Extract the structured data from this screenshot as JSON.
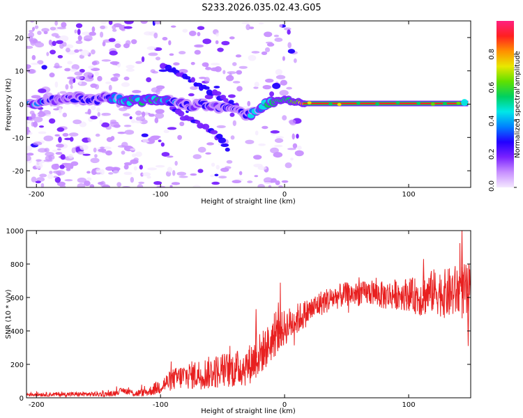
{
  "page_title": "S233.2026.035.02.43.G05",
  "chart_data": [
    {
      "type": "heatmap",
      "name": "spectrogram",
      "xlabel": "Height of straight line (km)",
      "ylabel": "Frequency (Hz)",
      "xlim": [
        -208,
        150
      ],
      "ylim": [
        -25,
        25
      ],
      "xticks": [
        -200,
        -100,
        0,
        100
      ],
      "xtick_labels": [
        "-200",
        "-100",
        "0",
        "100"
      ],
      "yticks": [
        -20,
        -10,
        0,
        10,
        20
      ],
      "ytick_labels": [
        "-20",
        "-10",
        "0",
        "10",
        "20"
      ],
      "colorbar": {
        "label": "Normalized spectral amplitude",
        "range": [
          0,
          1
        ],
        "ticks": [
          0.0,
          0.2,
          0.4,
          0.6,
          0.8
        ],
        "tick_labels": [
          "0.0",
          "0.2",
          "0.4",
          "0.6",
          "0.8"
        ],
        "colors": [
          "#f4e8ff",
          "#c890ff",
          "#7a22ff",
          "#2200ff",
          "#0080ff",
          "#00e8e8",
          "#00d060",
          "#60e000",
          "#e8e800",
          "#ff9000",
          "#ff2020",
          "#ff2080"
        ]
      },
      "ridge": [
        {
          "x": -205,
          "y": 0.5,
          "a": 0.45
        },
        {
          "x": -195,
          "y": 0.8,
          "a": 0.35
        },
        {
          "x": -185,
          "y": 1.0,
          "a": 0.2
        },
        {
          "x": -175,
          "y": 1.5,
          "a": 0.22
        },
        {
          "x": -165,
          "y": 2.0,
          "a": 0.3
        },
        {
          "x": -155,
          "y": 1.0,
          "a": 0.28
        },
        {
          "x": -145,
          "y": 2.0,
          "a": 0.25
        },
        {
          "x": -135,
          "y": 1.5,
          "a": 0.45
        },
        {
          "x": -125,
          "y": 1.0,
          "a": 0.5
        },
        {
          "x": -115,
          "y": 1.0,
          "a": 0.48
        },
        {
          "x": -105,
          "y": 1.5,
          "a": 0.55
        },
        {
          "x": -95,
          "y": 1.0,
          "a": 0.45
        },
        {
          "x": -85,
          "y": 0.0,
          "a": 0.3
        },
        {
          "x": -75,
          "y": -0.5,
          "a": 0.25
        },
        {
          "x": -65,
          "y": 0.0,
          "a": 0.25
        },
        {
          "x": -55,
          "y": -1.0,
          "a": 0.22
        },
        {
          "x": -45,
          "y": -1.5,
          "a": 0.25
        },
        {
          "x": -35,
          "y": -2.5,
          "a": 0.3
        },
        {
          "x": -30,
          "y": -3.5,
          "a": 0.35
        },
        {
          "x": -25,
          "y": -2.5,
          "a": 0.42
        },
        {
          "x": -20,
          "y": -1.0,
          "a": 0.48
        },
        {
          "x": -15,
          "y": 0.0,
          "a": 0.5
        },
        {
          "x": -10,
          "y": 1.0,
          "a": 0.5
        },
        {
          "x": -5,
          "y": 1.0,
          "a": 0.5
        },
        {
          "x": 0,
          "y": 1.5,
          "a": 0.55
        },
        {
          "x": 5,
          "y": 1.0,
          "a": 0.58
        },
        {
          "x": 10,
          "y": 0.5,
          "a": 0.62
        },
        {
          "x": 15,
          "y": 0.3,
          "a": 0.8
        },
        {
          "x": 30,
          "y": 0.2,
          "a": 0.92
        },
        {
          "x": 60,
          "y": 0.2,
          "a": 0.95
        },
        {
          "x": 100,
          "y": 0.2,
          "a": 0.95
        },
        {
          "x": 130,
          "y": 0.2,
          "a": 0.9
        },
        {
          "x": 145,
          "y": 0.3,
          "a": 0.6
        }
      ],
      "upper_branch": [
        {
          "x": -98,
          "y": 12.0
        },
        {
          "x": -85,
          "y": 9.0
        },
        {
          "x": -72,
          "y": 6.5
        },
        {
          "x": -60,
          "y": 4.0
        },
        {
          "x": -48,
          "y": 1.5
        },
        {
          "x": -38,
          "y": -1.0
        }
      ],
      "lower_branch": [
        {
          "x": -90,
          "y": -1.5
        },
        {
          "x": -80,
          "y": -4.0
        },
        {
          "x": -70,
          "y": -6.0
        },
        {
          "x": -60,
          "y": -8.0
        },
        {
          "x": -50,
          "y": -11.0
        },
        {
          "x": -45,
          "y": -14.0
        }
      ]
    },
    {
      "type": "line",
      "name": "snr",
      "xlabel": "Height of straight line (km)",
      "ylabel": "SNR (10 * v/v)",
      "xlim": [
        -208,
        150
      ],
      "ylim": [
        0,
        1000
      ],
      "xticks": [
        -200,
        -100,
        0,
        100
      ],
      "xtick_labels": [
        "-200",
        "-100",
        "0",
        "100"
      ],
      "yticks": [
        0,
        200,
        400,
        600,
        800,
        1000
      ],
      "ytick_labels": [
        "0",
        "200",
        "400",
        "600",
        "800",
        "1000"
      ],
      "color": "#e82020",
      "trend": [
        {
          "x": -208,
          "y": 20
        },
        {
          "x": -140,
          "y": 22
        },
        {
          "x": -130,
          "y": 45
        },
        {
          "x": -120,
          "y": 25
        },
        {
          "x": -110,
          "y": 35
        },
        {
          "x": -100,
          "y": 70
        },
        {
          "x": -90,
          "y": 110
        },
        {
          "x": -80,
          "y": 130
        },
        {
          "x": -70,
          "y": 140
        },
        {
          "x": -60,
          "y": 150
        },
        {
          "x": -50,
          "y": 165
        },
        {
          "x": -40,
          "y": 170
        },
        {
          "x": -30,
          "y": 190
        },
        {
          "x": -20,
          "y": 260
        },
        {
          "x": -10,
          "y": 340
        },
        {
          "x": 0,
          "y": 420
        },
        {
          "x": 10,
          "y": 470
        },
        {
          "x": 20,
          "y": 520
        },
        {
          "x": 30,
          "y": 570
        },
        {
          "x": 40,
          "y": 600
        },
        {
          "x": 50,
          "y": 620
        },
        {
          "x": 60,
          "y": 620
        },
        {
          "x": 70,
          "y": 630
        },
        {
          "x": 80,
          "y": 610
        },
        {
          "x": 90,
          "y": 620
        },
        {
          "x": 100,
          "y": 620
        },
        {
          "x": 110,
          "y": 600
        },
        {
          "x": 120,
          "y": 640
        },
        {
          "x": 130,
          "y": 620
        },
        {
          "x": 140,
          "y": 640
        },
        {
          "x": 150,
          "y": 620
        }
      ],
      "noise": [
        {
          "x": -208,
          "y": 12
        },
        {
          "x": -140,
          "y": 15
        },
        {
          "x": -110,
          "y": 25
        },
        {
          "x": -100,
          "y": 50
        },
        {
          "x": -80,
          "y": 80
        },
        {
          "x": -60,
          "y": 100
        },
        {
          "x": -40,
          "y": 110
        },
        {
          "x": -20,
          "y": 130
        },
        {
          "x": 0,
          "y": 110
        },
        {
          "x": 20,
          "y": 80
        },
        {
          "x": 60,
          "y": 70
        },
        {
          "x": 100,
          "y": 100
        },
        {
          "x": 130,
          "y": 150
        },
        {
          "x": 150,
          "y": 180
        }
      ],
      "spikes": [
        {
          "x": -23,
          "y": 530
        },
        {
          "x": -5,
          "y": 570
        },
        {
          "x": 60,
          "y": 720
        },
        {
          "x": 112,
          "y": 830
        },
        {
          "x": 143,
          "y": 1000
        },
        {
          "x": 148,
          "y": 310
        }
      ]
    }
  ]
}
